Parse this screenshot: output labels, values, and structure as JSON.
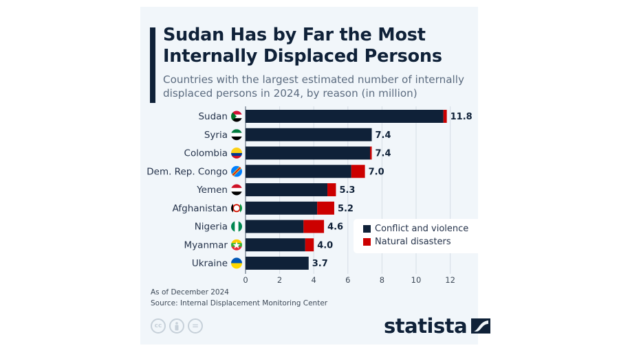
{
  "header": {
    "title": "Sudan Has by Far the Most Internally Displaced Persons",
    "title_line1": "Sudan Has by Far the Most",
    "title_line2": "Internally Displaced Persons",
    "subtitle_line1": "Countries with the largest estimated number of internally",
    "subtitle_line2": "displaced persons in 2024, by reason (in million)"
  },
  "footer": {
    "note": "As of December 2024",
    "source": "Source: Internal Displacement Monitoring Center",
    "license_icons": [
      "cc-icon",
      "attribution-icon",
      "no-derivatives-icon"
    ],
    "license_glyphs": [
      "cc",
      "",
      "="
    ],
    "brand": "statista"
  },
  "colors": {
    "conflict": "#0f2138",
    "disasters": "#cc0000",
    "background": "#f1f6fa",
    "gridline": "#d5dde5"
  },
  "chart_data": {
    "type": "bar",
    "orientation": "horizontal",
    "stacked": true,
    "title": "Sudan Has by Far the Most Internally Displaced Persons",
    "subtitle": "Countries with the largest estimated number of internally displaced persons in 2024, by reason (in million)",
    "xlabel": "",
    "ylabel": "",
    "xlim": [
      0,
      12
    ],
    "xticks": [
      0,
      2,
      4,
      6,
      8,
      10,
      12
    ],
    "grid": true,
    "legend_position": "right",
    "categories": [
      "Sudan",
      "Syria",
      "Colombia",
      "Dem. Rep. Congo",
      "Yemen",
      "Afghanistan",
      "Nigeria",
      "Myanmar",
      "Ukraine"
    ],
    "flags": [
      "sudan-flag-icon",
      "syria-flag-icon",
      "colombia-flag-icon",
      "drc-flag-icon",
      "yemen-flag-icon",
      "afghanistan-flag-icon",
      "nigeria-flag-icon",
      "myanmar-flag-icon",
      "ukraine-flag-icon"
    ],
    "series": [
      {
        "name": "Conflict and violence",
        "color": "#0f2138",
        "values": [
          11.6,
          7.4,
          7.3,
          6.2,
          4.8,
          4.2,
          3.4,
          3.5,
          3.7
        ]
      },
      {
        "name": "Natural disasters",
        "color": "#cc0000",
        "values": [
          0.2,
          0.0,
          0.1,
          0.8,
          0.5,
          1.0,
          1.2,
          0.5,
          0.0
        ]
      }
    ],
    "totals": [
      11.8,
      7.4,
      7.4,
      7.0,
      5.3,
      5.2,
      4.6,
      4.0,
      3.7
    ],
    "total_labels": [
      "11.8",
      "7.4",
      "7.4",
      "7.0",
      "5.3",
      "5.2",
      "4.6",
      "4.0",
      "3.7"
    ]
  }
}
